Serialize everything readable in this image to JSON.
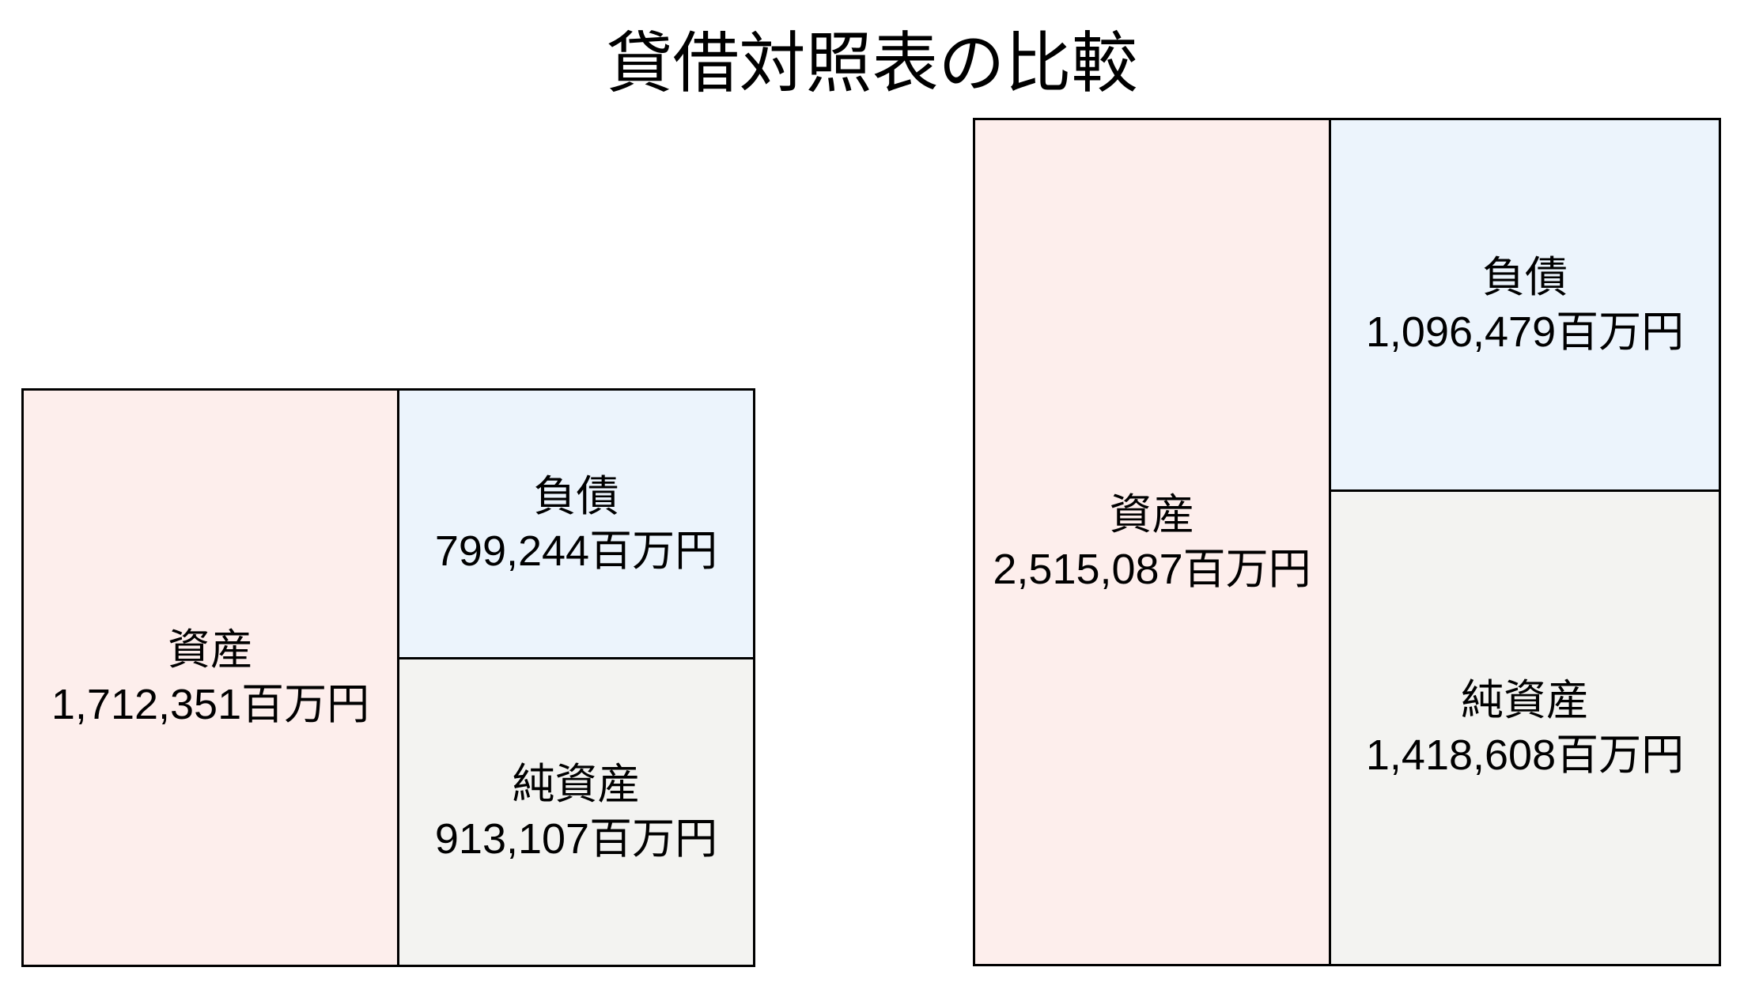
{
  "title": "貸借対照表の比較",
  "unit": "百万円",
  "colors": {
    "assets": "#fdeeec",
    "liabilities": "#ecf4fc",
    "net_assets": "#f3f3f1",
    "border": "#000000",
    "text": "#000000",
    "background": "#ffffff"
  },
  "sheets": [
    {
      "position": "left",
      "assets": {
        "label": "資産",
        "value": 1712351,
        "value_text": "1,712,351百万円"
      },
      "liabilities": {
        "label": "負債",
        "value": 799244,
        "value_text": "799,244百万円"
      },
      "net_assets": {
        "label": "純資産",
        "value": 913107,
        "value_text": "913,107百万円"
      }
    },
    {
      "position": "right",
      "assets": {
        "label": "資産",
        "value": 2515087,
        "value_text": "2,515,087百万円"
      },
      "liabilities": {
        "label": "負債",
        "value": 1096479,
        "value_text": "1,096,479百万円"
      },
      "net_assets": {
        "label": "純資産",
        "value": 1418608,
        "value_text": "1,418,608百万円"
      }
    }
  ],
  "chart_data": {
    "type": "bar",
    "subtype": "balance-sheet-box-comparison",
    "title": "貸借対照表の比較",
    "unit": "百万円",
    "series": [
      {
        "name": "負債",
        "values": [
          799244,
          1096479
        ]
      },
      {
        "name": "純資産",
        "values": [
          913107,
          1418608
        ]
      }
    ],
    "totals": {
      "name": "資産",
      "values": [
        1712351,
        2515087
      ]
    },
    "layout_hints": {
      "sheet_count": 2,
      "box_height_proportional_to": "資産 (total assets)",
      "assets_column": "left half of each sheet",
      "liabilities_box": "top of right half",
      "net_assets_box": "bottom of right half",
      "legend": false,
      "axes": false,
      "grid": false
    }
  }
}
